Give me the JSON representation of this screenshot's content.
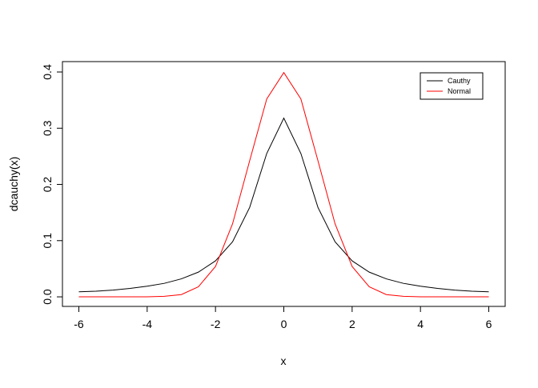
{
  "chart_data": {
    "type": "line",
    "xlabel": "x",
    "ylabel": "dcauchy(x)",
    "x": [
      -6,
      -5.5,
      -5,
      -4.5,
      -4,
      -3.5,
      -3,
      -2.5,
      -2,
      -1.5,
      -1,
      -0.5,
      0,
      0.5,
      1,
      1.5,
      2,
      2.5,
      3,
      3.5,
      4,
      4.5,
      5,
      5.5,
      6
    ],
    "series": [
      {
        "name": "Cauthy",
        "color": "#000000",
        "values": [
          0.009,
          0.01,
          0.012,
          0.015,
          0.019,
          0.024,
          0.032,
          0.044,
          0.064,
          0.098,
          0.159,
          0.255,
          0.318,
          0.255,
          0.159,
          0.098,
          0.064,
          0.044,
          0.032,
          0.024,
          0.019,
          0.015,
          0.012,
          0.01,
          0.009
        ]
      },
      {
        "name": "Normal",
        "color": "#ff0000",
        "values": [
          0,
          0,
          0,
          0,
          0,
          0.001,
          0.004,
          0.018,
          0.054,
          0.13,
          0.242,
          0.352,
          0.399,
          0.352,
          0.242,
          0.13,
          0.054,
          0.018,
          0.004,
          0.001,
          0,
          0,
          0,
          0,
          0
        ]
      }
    ],
    "xlim": [
      -6.48,
      6.48
    ],
    "xticks": [
      -6,
      -4,
      -2,
      0,
      2,
      4,
      6
    ],
    "ylim": [
      -0.017,
      0.4185
    ],
    "yticks": [
      0.0,
      0.1,
      0.2,
      0.3,
      0.4
    ],
    "ytick_labels": [
      "0.0",
      "0.1",
      "0.2",
      "0.3",
      "0.4"
    ],
    "legend": "topright"
  }
}
